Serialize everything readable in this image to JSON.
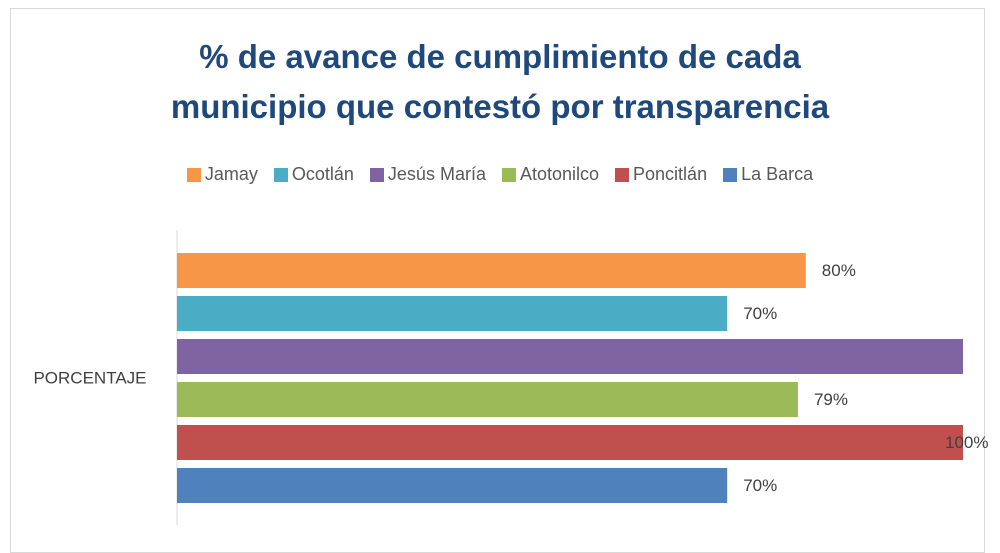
{
  "chart_data": {
    "type": "barh",
    "title": "% de avance de cumplimiento de cada municipio que contestó por transparencia",
    "categories": [
      "PORCENTAJE"
    ],
    "xlim": [
      0,
      100
    ],
    "series": [
      {
        "name": "Jamay",
        "color": "#f79646",
        "values": [
          80
        ],
        "value_labels": [
          "80%"
        ]
      },
      {
        "name": "Ocotlán",
        "color": "#4bacc6",
        "values": [
          70
        ],
        "value_labels": [
          "70%"
        ]
      },
      {
        "name": "Jesús María",
        "color": "#8064a2",
        "values": [
          100
        ]
      },
      {
        "name": "Atotonilco",
        "color": "#9bbb59",
        "values": [
          79
        ],
        "value_labels": [
          "79%"
        ]
      },
      {
        "name": "Poncitlán",
        "color": "#c0504d",
        "values": [
          100
        ],
        "value_labels": [
          "100%"
        ]
      },
      {
        "name": "La Barca",
        "color": "#4f81bd",
        "values": [
          70
        ],
        "value_labels": [
          "70%"
        ]
      }
    ]
  }
}
